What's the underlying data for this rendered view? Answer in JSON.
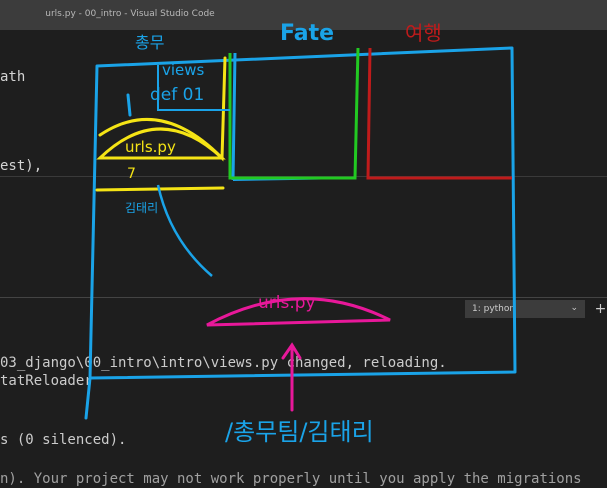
{
  "window": {
    "title": "urls.py - 00_intro - Visual Studio Code"
  },
  "editor": {
    "lines": [
      "ath",
      "est),"
    ]
  },
  "terminal": {
    "selector_value": "1: python",
    "chevron_icon": "chevron-down-icon",
    "plus_icon": "plus-icon",
    "lines": [
      "03_django\\00_intro\\intro\\views.py changed, reloading.",
      "tatReloader",
      "s (0 silenced).",
      "n). Your project may not work properly until you apply the migrations"
    ]
  },
  "annotations": {
    "top_label": "Fate",
    "red_label": "여행",
    "left_label": "총무",
    "views_label": "views",
    "def_label": "def 01",
    "urls_small_label": "urls.py",
    "seven_label": "7",
    "kim_label": "김태리",
    "urls_center_label": "urls.py",
    "bottom_label": "/총무팀/김태리",
    "colors": {
      "blue": "#1aa3e8",
      "yellow": "#f5e415",
      "green": "#22c922",
      "red": "#c01b1b",
      "pink": "#e8189a"
    }
  }
}
